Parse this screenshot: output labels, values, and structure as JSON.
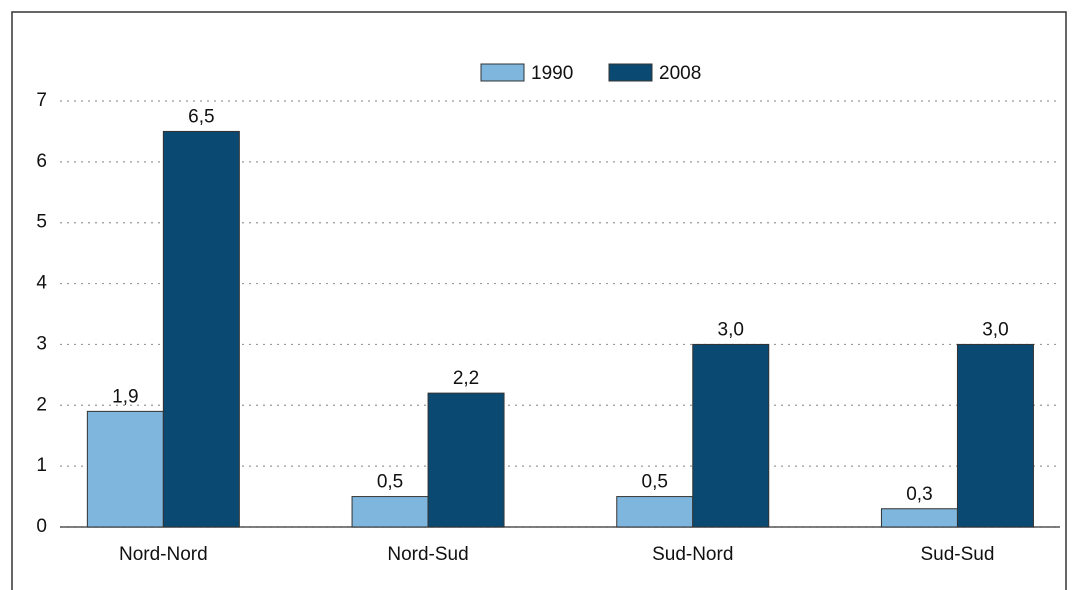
{
  "chart_data": {
    "type": "bar",
    "categories": [
      "Nord-Nord",
      "Nord-Sud",
      "Sud-Nord",
      "Sud-Sud"
    ],
    "series": [
      {
        "name": "1990",
        "color": "#7eb6dd",
        "values": [
          1.9,
          0.5,
          0.5,
          0.3
        ],
        "value_labels": [
          "1,9",
          "0,5",
          "0,5",
          "0,3"
        ]
      },
      {
        "name": "2008",
        "color": "#0a4a72",
        "values": [
          6.5,
          2.2,
          3.0,
          3.0
        ],
        "value_labels": [
          "6,5",
          "2,2",
          "3,0",
          "3,0"
        ]
      }
    ],
    "ylim": [
      0,
      7
    ],
    "yticks": [
      0,
      1,
      2,
      3,
      4,
      5,
      6,
      7
    ],
    "grid": true,
    "legend": "top"
  }
}
